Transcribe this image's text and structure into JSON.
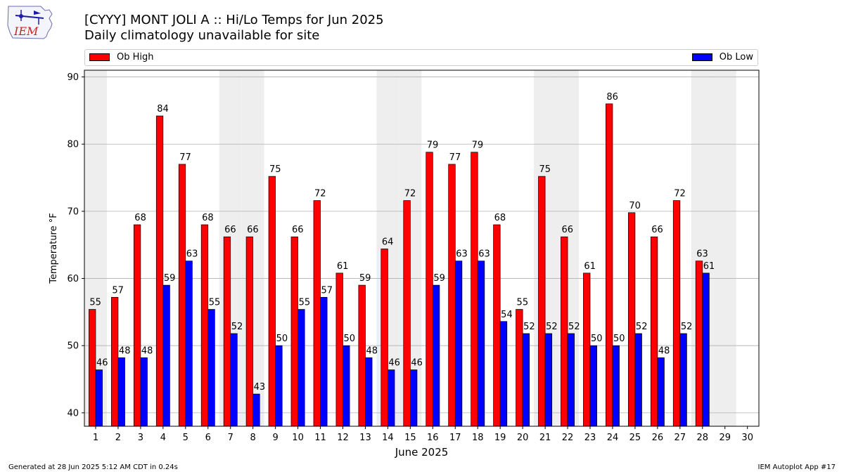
{
  "title_line1": "[CYYY] MONT JOLI A :: Hi/Lo Temps for Jun 2025",
  "title_line2": "Daily climatology unavailable for site",
  "logo_text": "IEM",
  "footer_left": "Generated at 28 Jun 2025 5:12 AM CDT in 0.24s",
  "footer_right": "IEM Autoplot App #17",
  "colors": {
    "high": "#ff0000",
    "low": "#0000ff",
    "weekend": "#eeeeee",
    "grid": "#b0b0b0"
  },
  "chart_data": {
    "type": "bar",
    "xlabel": "June 2025",
    "ylabel": "Temperature °F",
    "ylim": [
      38,
      91
    ],
    "yticks": [
      40,
      50,
      60,
      70,
      80,
      90
    ],
    "grid": true,
    "legend_position": "top",
    "categories": [
      "1",
      "2",
      "3",
      "4",
      "5",
      "6",
      "7",
      "8",
      "9",
      "10",
      "11",
      "12",
      "13",
      "14",
      "15",
      "16",
      "17",
      "18",
      "19",
      "20",
      "21",
      "22",
      "23",
      "24",
      "25",
      "26",
      "27",
      "28",
      "29",
      "30"
    ],
    "weekend_days": [
      1,
      7,
      8,
      14,
      15,
      21,
      22,
      28,
      29
    ],
    "series": [
      {
        "name": "Ob High",
        "values": [
          55,
          57,
          68,
          84,
          77,
          68,
          66,
          66,
          75,
          66,
          72,
          61,
          59,
          64,
          72,
          79,
          77,
          79,
          68,
          55,
          75,
          66,
          61,
          86,
          70,
          66,
          72,
          63,
          null,
          null
        ],
        "plotted": [
          55.4,
          57.2,
          68.0,
          84.2,
          77.0,
          68.0,
          66.2,
          66.2,
          75.2,
          66.2,
          71.6,
          60.8,
          59.0,
          64.4,
          71.6,
          78.8,
          77.0,
          78.8,
          68.0,
          55.4,
          75.2,
          66.2,
          60.8,
          86.0,
          69.8,
          66.2,
          71.6,
          62.6,
          null,
          null
        ]
      },
      {
        "name": "Ob Low",
        "values": [
          46,
          48,
          48,
          59,
          63,
          55,
          52,
          43,
          50,
          55,
          57,
          50,
          48,
          46,
          46,
          59,
          63,
          63,
          54,
          52,
          52,
          52,
          50,
          50,
          52,
          48,
          52,
          61,
          null,
          null
        ],
        "plotted": [
          46.4,
          48.2,
          48.2,
          59.0,
          62.6,
          55.4,
          51.8,
          42.8,
          50.0,
          55.4,
          57.2,
          50.0,
          48.2,
          46.4,
          46.4,
          59.0,
          62.6,
          62.6,
          53.6,
          51.8,
          51.8,
          51.8,
          50.0,
          50.0,
          51.8,
          48.2,
          51.8,
          60.8,
          null,
          null
        ]
      }
    ]
  }
}
